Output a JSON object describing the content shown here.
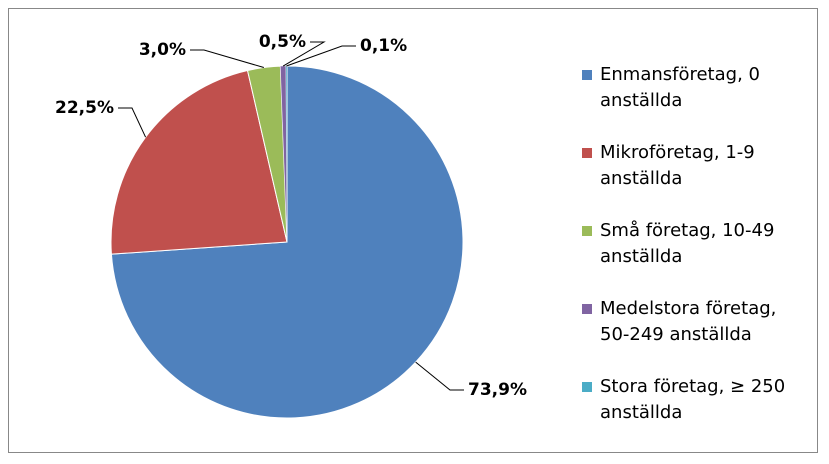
{
  "chart_data": {
    "type": "pie",
    "categories": [
      "Enmansföretag, 0 anställda",
      "Mikroföretag, 1-9 anställda",
      "Små företag, 10-49 anställda",
      "Medelstora företag, 50-249 anställda",
      "Stora företag, ≥ 250 anställda"
    ],
    "values": [
      73.9,
      22.5,
      3.0,
      0.5,
      0.1
    ],
    "value_labels": [
      "73,9%",
      "22,5%",
      "3,0%",
      "0,5%",
      "0,1%"
    ],
    "colors": [
      "#4f81bd",
      "#c0504d",
      "#9bbb59",
      "#8064a2",
      "#4bacc6"
    ],
    "legend": "right"
  }
}
